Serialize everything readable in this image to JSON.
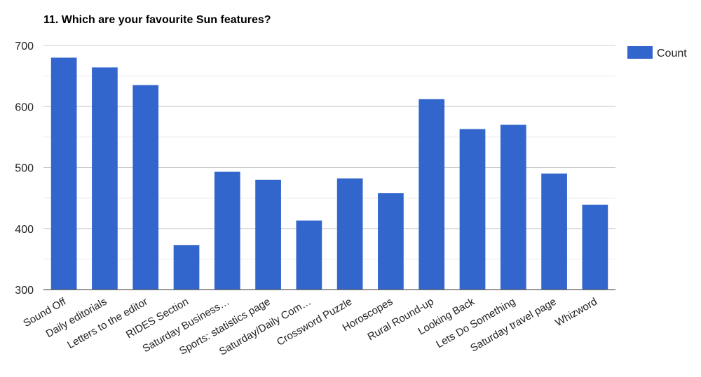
{
  "chart_data": {
    "type": "bar",
    "title": "11. Which are your favourite Sun features?",
    "xlabel": "",
    "ylabel": "",
    "categories": [
      "Sound Off",
      "Daily editorials",
      "Letters to the editor",
      "RIDES Section",
      "Saturday Business…",
      "Sports: statistics page",
      "Saturday/Daily Com…",
      "Crossword Puzzle",
      "Horoscopes",
      "Rural Round-up",
      "Looking Back",
      "Lets Do Something",
      "Saturday travel page",
      "Whizword"
    ],
    "series": [
      {
        "name": "Count",
        "values": [
          680,
          664,
          635,
          373,
          493,
          480,
          413,
          482,
          458,
          612,
          563,
          570,
          490,
          439
        ],
        "color": "#3366cc"
      }
    ],
    "ylim": [
      300,
      700
    ],
    "yticks": [
      300,
      400,
      500,
      600,
      700
    ],
    "grid": true,
    "legend_position": "right"
  }
}
